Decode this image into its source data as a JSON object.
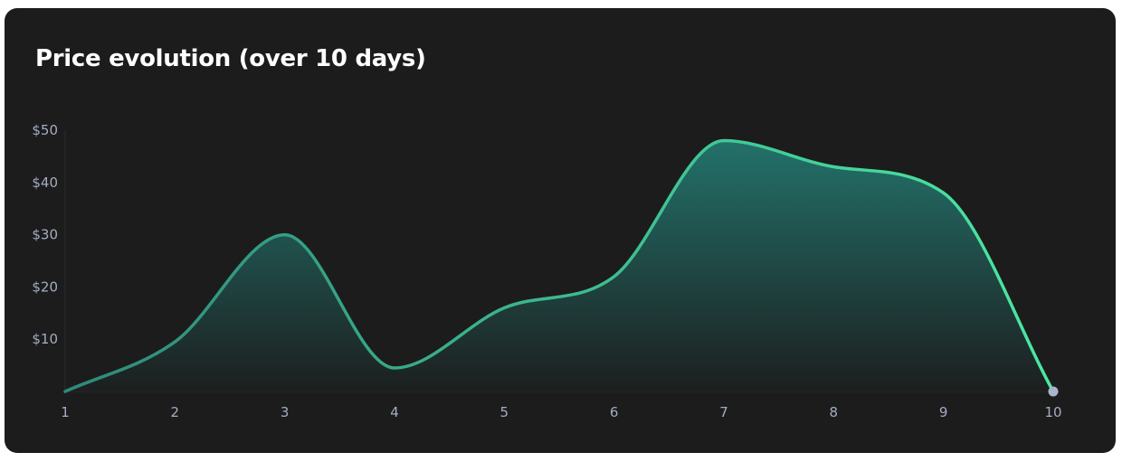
{
  "chart_data": {
    "type": "area",
    "title": "Price evolution (over 10 days)",
    "xlabel": "",
    "ylabel": "",
    "x": [
      1,
      2,
      3,
      4,
      5,
      6,
      7,
      8,
      9,
      10
    ],
    "y_ticks": [
      "$10",
      "$20",
      "$30",
      "$40",
      "$50"
    ],
    "y_tick_values": [
      10,
      20,
      30,
      40,
      50
    ],
    "ylim": [
      0,
      50
    ],
    "xlim": [
      1,
      10
    ],
    "series": [
      {
        "values": [
          0,
          9.5,
          30,
          4.5,
          16,
          22,
          48,
          43,
          38,
          0
        ]
      }
    ],
    "grid": false,
    "legend": "none",
    "colors": {
      "line_start": "#2d8a7a",
      "line_end": "#4be8a2",
      "fill_top": "#23716a",
      "fill_bottom": "#1c1f1f",
      "end_marker": "#aab4cc",
      "axis": "#2c2c2c",
      "tick_text": "#a3adc2",
      "background": "#1c1c1c",
      "title": "#ffffff"
    }
  }
}
